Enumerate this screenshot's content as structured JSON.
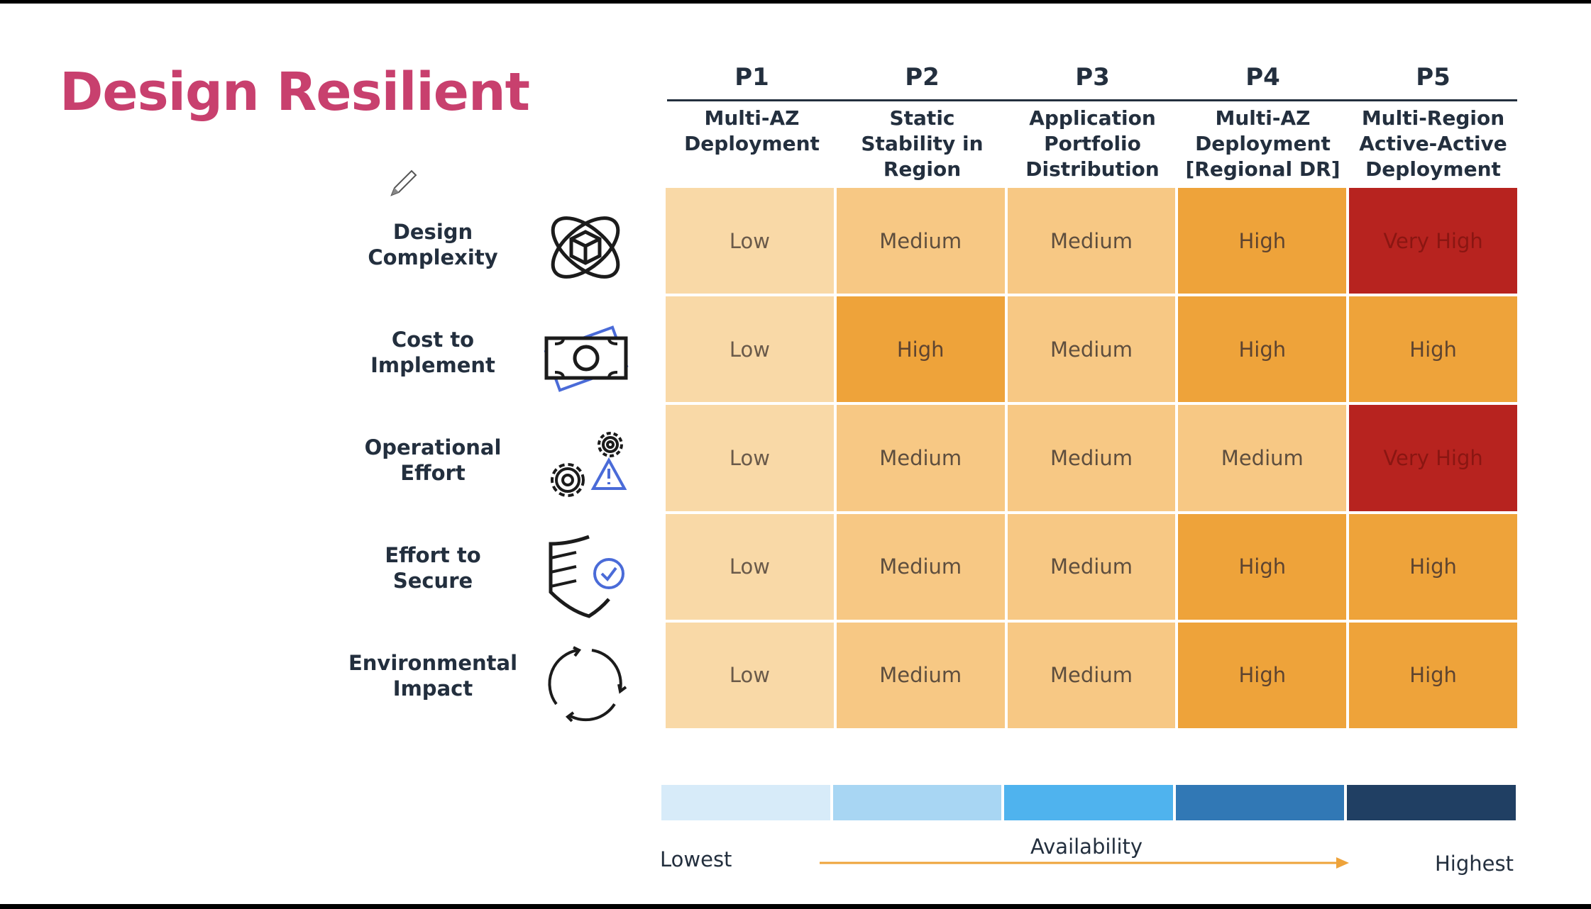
{
  "title": "Design Resilient",
  "columns": [
    {
      "id": "P1",
      "title": [
        "Multi-AZ",
        "Deployment"
      ]
    },
    {
      "id": "P2",
      "title": [
        "Static",
        "Stability in",
        "Region"
      ]
    },
    {
      "id": "P3",
      "title": [
        "Application",
        "Portfolio",
        "Distribution"
      ]
    },
    {
      "id": "P4",
      "title": [
        "Multi-AZ",
        "Deployment",
        "[Regional DR]"
      ]
    },
    {
      "id": "P5",
      "title": [
        "Multi-Region",
        "Active-Active",
        "Deployment"
      ]
    }
  ],
  "rows": [
    {
      "label": [
        "Design",
        "Complexity"
      ],
      "icon": "atom-cube-icon",
      "values": [
        "Low",
        "Medium",
        "Medium",
        "High",
        "Very High"
      ]
    },
    {
      "label": [
        "Cost to",
        "Implement"
      ],
      "icon": "money-bill-icon",
      "values": [
        "Low",
        "High",
        "Medium",
        "High",
        "High"
      ]
    },
    {
      "label": [
        "Operational",
        "Effort"
      ],
      "icon": "gears-warning-icon",
      "values": [
        "Low",
        "Medium",
        "Medium",
        "Medium",
        "Very High"
      ]
    },
    {
      "label": [
        "Effort to",
        "Secure"
      ],
      "icon": "shield-check-icon",
      "values": [
        "Low",
        "Medium",
        "Medium",
        "High",
        "High"
      ]
    },
    {
      "label": [
        "Environmental",
        "Impact"
      ],
      "icon": "cycle-arrows-icon",
      "values": [
        "Low",
        "Medium",
        "Medium",
        "High",
        "High"
      ]
    }
  ],
  "colors": {
    "title": "#c8406e",
    "text": "#232f3e",
    "level_colors": {
      "Low": "#f9d9a7",
      "Medium": "#f7c884",
      "High": "#eea33a",
      "Very High": "#b7231f"
    },
    "availability_scale": [
      "#d7ebf9",
      "#a8d6f3",
      "#4fb3ee",
      "#3178b5",
      "#203f63"
    ],
    "arrow": "#eea33a"
  },
  "availability": {
    "label": "Availability",
    "low_label": "Lowest",
    "high_label": "Highest"
  }
}
